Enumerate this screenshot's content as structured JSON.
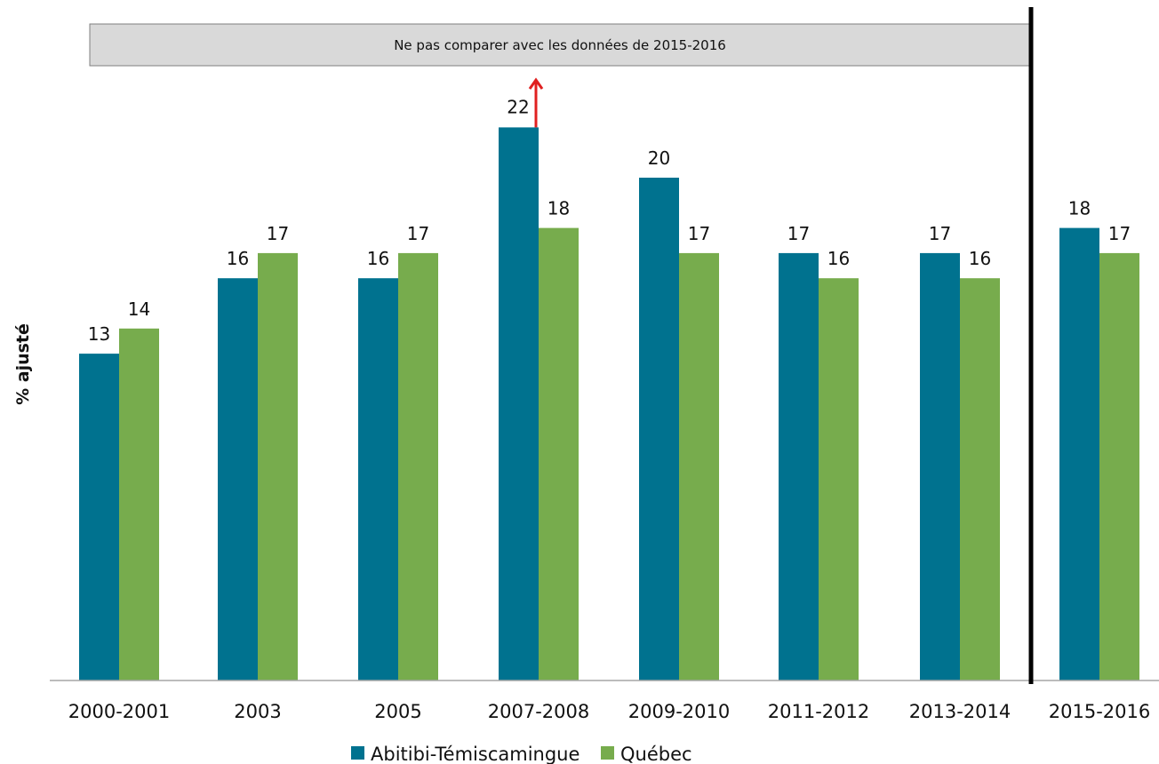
{
  "note": "Ne pas comparer avec les données de 2015-2016",
  "chart_data": {
    "type": "bar",
    "title": "",
    "xlabel": "",
    "ylabel": "% ajusté",
    "ylim": [
      0,
      25
    ],
    "grid": false,
    "legend_position": "bottom",
    "categories": [
      "2000-2001",
      "2003",
      "2005",
      "2007-2008",
      "2009-2010",
      "2011-2012",
      "2013-2014",
      "2015-2016"
    ],
    "series": [
      {
        "name": "Abitibi-Témiscamingue",
        "color": "#00728f",
        "values": [
          13,
          16,
          16,
          22,
          20,
          17,
          17,
          18
        ],
        "labels": [
          "13",
          "16",
          "16",
          "22",
          "20",
          "17",
          "17",
          "18"
        ]
      },
      {
        "name": "Québec",
        "color": "#77ac4d",
        "values": [
          14,
          17,
          17,
          18,
          17,
          16,
          16,
          17
        ],
        "labels": [
          "14",
          "17",
          "17",
          "18",
          "17",
          "16",
          "16",
          "17"
        ]
      }
    ],
    "annotations": [
      {
        "type": "arrow-up",
        "category": "2007-2008",
        "series": "Abitibi-Témiscamingue",
        "color": "#e02020"
      },
      {
        "type": "vertical-separator",
        "before_category": "2015-2016",
        "color": "#000000"
      }
    ]
  }
}
